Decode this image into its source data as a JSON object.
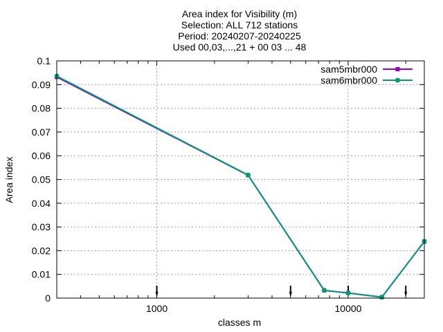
{
  "chart_data": {
    "type": "line",
    "title_lines": [
      "Area index  for Visibility (m)",
      "Selection: ALL    712 stations",
      "Period: 20240207-20240225",
      "Used 00,03,...,21 + 00 03 ... 48"
    ],
    "xlabel": "classes m",
    "ylabel": "Area index",
    "x_scale": "log",
    "xlim": [
      300,
      25000
    ],
    "ylim": [
      0,
      0.1
    ],
    "x_ticks": [
      {
        "value": 1000,
        "label": "1000"
      },
      {
        "value": 10000,
        "label": "10000"
      }
    ],
    "y_ticks": [
      {
        "value": 0,
        "label": "0"
      },
      {
        "value": 0.01,
        "label": "0.01"
      },
      {
        "value": 0.02,
        "label": "0.02"
      },
      {
        "value": 0.03,
        "label": "0.03"
      },
      {
        "value": 0.04,
        "label": "0.04"
      },
      {
        "value": 0.05,
        "label": "0.05"
      },
      {
        "value": 0.06,
        "label": "0.06"
      },
      {
        "value": 0.07,
        "label": "0.07"
      },
      {
        "value": 0.08,
        "label": "0.08"
      },
      {
        "value": 0.09,
        "label": "0.09"
      },
      {
        "value": 0.1,
        "label": "0.1"
      }
    ],
    "grid": true,
    "legend_position": "top-right",
    "series": [
      {
        "name": "sam5mbr000",
        "color": "#9400d3",
        "x": [
          300,
          3000,
          7500,
          10000,
          15000,
          25000
        ],
        "values": [
          0.0932,
          0.0518,
          0.0032,
          0.0022,
          0.0004,
          0.0239
        ]
      },
      {
        "name": "sam6mbr000",
        "color": "#009e73",
        "x": [
          300,
          3000,
          7500,
          10000,
          15000,
          25000
        ],
        "values": [
          0.0936,
          0.0519,
          0.0033,
          0.0021,
          0.0004,
          0.0238
        ]
      }
    ],
    "markers": [
      1000,
      5000,
      10000,
      20000
    ]
  }
}
